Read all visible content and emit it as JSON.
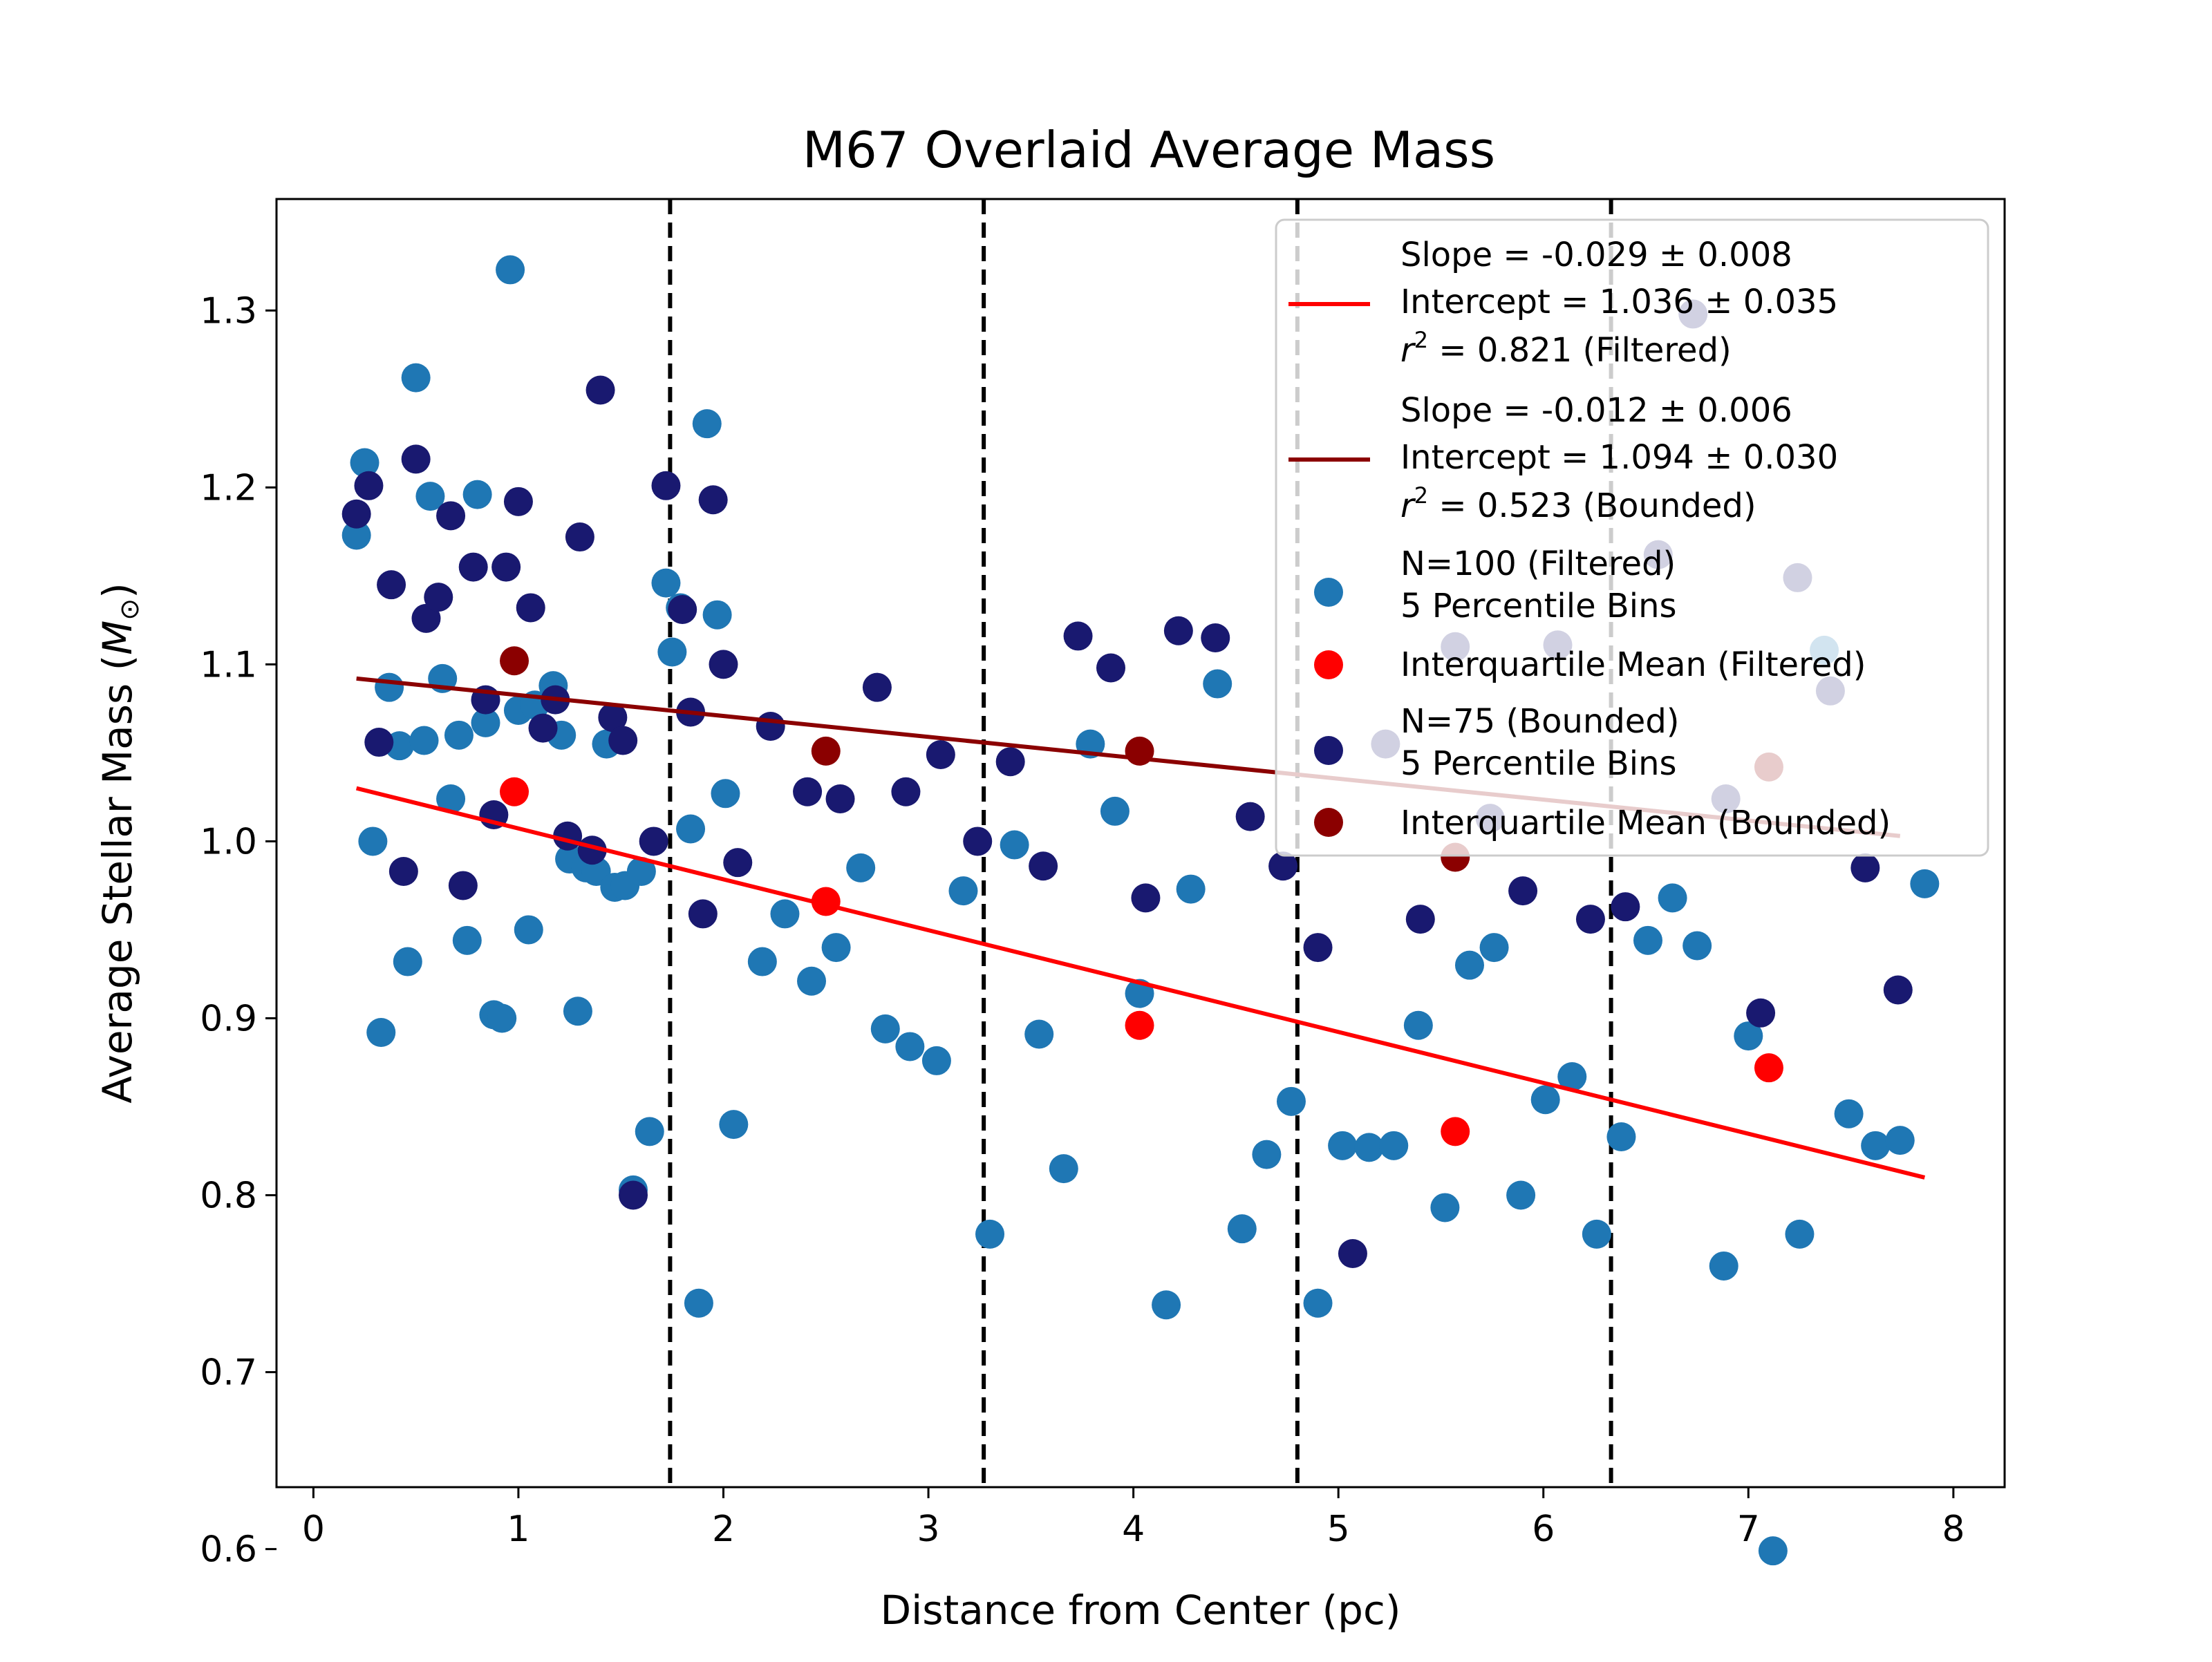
{
  "chart_data": {
    "type": "scatter",
    "title": "M67 Overlaid Average Mass",
    "xlabel": "Distance from Center (pc)",
    "ylabel": "Average Stellar Mass (M☉)",
    "ylabel_parts": {
      "main": "Average Stellar Mass (",
      "sym": "M",
      "sub": "⊙",
      "close": ")"
    },
    "xlim": [
      -0.18,
      8.25
    ],
    "ylim": [
      0.635,
      1.363
    ],
    "xticks": [
      0,
      1,
      2,
      3,
      4,
      5,
      6,
      7,
      8
    ],
    "xtick_labels": [
      "0",
      "1",
      "2",
      "3",
      "4",
      "5",
      "6",
      "7",
      "8"
    ],
    "yticks": [
      0.6,
      0.7,
      0.8,
      0.9,
      1.0,
      1.1,
      1.2,
      1.3
    ],
    "ytick_labels": [
      "0.6",
      "0.7",
      "0.8",
      "0.9",
      "1.0",
      "1.1",
      "1.2",
      "1.3"
    ],
    "grid": false,
    "legend_position": "top-right",
    "bin_edges": [
      1.74,
      3.27,
      4.8,
      6.33
    ],
    "series": [
      {
        "name": "N=100 (Filtered) 5 Percentile Bins",
        "color": "#1f77b4",
        "points": [
          [
            0.21,
            1.173
          ],
          [
            0.25,
            1.214
          ],
          [
            0.29,
            1.0
          ],
          [
            0.33,
            0.892
          ],
          [
            0.37,
            1.087
          ],
          [
            0.42,
            1.054
          ],
          [
            0.46,
            0.932
          ],
          [
            0.5,
            1.262
          ],
          [
            0.54,
            1.057
          ],
          [
            0.57,
            1.195
          ],
          [
            0.63,
            1.092
          ],
          [
            0.67,
            1.024
          ],
          [
            0.71,
            1.06
          ],
          [
            0.75,
            0.944
          ],
          [
            0.8,
            1.196
          ],
          [
            0.84,
            1.067
          ],
          [
            0.88,
            0.902
          ],
          [
            0.92,
            0.9
          ],
          [
            0.96,
            1.323
          ],
          [
            1.0,
            1.074
          ],
          [
            1.05,
            0.95
          ],
          [
            1.08,
            1.077
          ],
          [
            1.17,
            1.088
          ],
          [
            1.21,
            1.06
          ],
          [
            1.25,
            0.99
          ],
          [
            1.29,
            0.904
          ],
          [
            1.33,
            0.985
          ],
          [
            1.38,
            0.983
          ],
          [
            1.43,
            1.055
          ],
          [
            1.47,
            0.974
          ],
          [
            1.52,
            0.975
          ],
          [
            1.56,
            0.803
          ],
          [
            1.6,
            0.983
          ],
          [
            1.64,
            0.836
          ],
          [
            1.72,
            1.146
          ],
          [
            1.75,
            1.107
          ],
          [
            1.79,
            1.132
          ],
          [
            1.84,
            1.007
          ],
          [
            1.88,
            0.739
          ],
          [
            1.92,
            1.236
          ],
          [
            1.97,
            1.128
          ],
          [
            2.01,
            1.027
          ],
          [
            2.05,
            0.84
          ],
          [
            2.3,
            0.959
          ],
          [
            2.19,
            0.932
          ],
          [
            2.43,
            0.921
          ],
          [
            2.55,
            0.94
          ],
          [
            2.67,
            0.985
          ],
          [
            2.79,
            0.894
          ],
          [
            2.91,
            0.884
          ],
          [
            3.04,
            0.876
          ],
          [
            3.17,
            0.972
          ],
          [
            3.3,
            0.778
          ],
          [
            3.42,
            0.998
          ],
          [
            3.54,
            0.891
          ],
          [
            3.66,
            0.815
          ],
          [
            3.79,
            1.055
          ],
          [
            3.91,
            1.017
          ],
          [
            4.03,
            0.914
          ],
          [
            4.16,
            0.738
          ],
          [
            4.28,
            0.973
          ],
          [
            4.41,
            1.089
          ],
          [
            4.53,
            0.781
          ],
          [
            4.65,
            0.823
          ],
          [
            4.77,
            0.853
          ],
          [
            4.9,
            0.739
          ],
          [
            5.02,
            0.828
          ],
          [
            5.15,
            0.827
          ],
          [
            5.27,
            0.828
          ],
          [
            5.39,
            0.896
          ],
          [
            5.52,
            0.793
          ],
          [
            5.64,
            0.93
          ],
          [
            5.76,
            0.94
          ],
          [
            5.89,
            0.8
          ],
          [
            6.01,
            0.854
          ],
          [
            6.14,
            0.867
          ],
          [
            6.26,
            0.778
          ],
          [
            6.38,
            0.833
          ],
          [
            6.51,
            0.944
          ],
          [
            6.63,
            0.968
          ],
          [
            6.75,
            0.941
          ],
          [
            6.88,
            0.76
          ],
          [
            7.0,
            0.89
          ],
          [
            7.12,
            0.599
          ],
          [
            7.25,
            0.778
          ],
          [
            7.37,
            1.108
          ],
          [
            7.49,
            0.846
          ],
          [
            7.62,
            0.828
          ],
          [
            7.74,
            0.831
          ],
          [
            7.86,
            0.976
          ]
        ]
      },
      {
        "name": "Interquartile Mean (Filtered)",
        "color": "#ff0000",
        "points": [
          [
            0.98,
            1.028
          ],
          [
            2.5,
            0.966
          ],
          [
            4.03,
            0.896
          ],
          [
            5.57,
            0.836
          ],
          [
            7.1,
            0.872
          ]
        ]
      },
      {
        "name": "N=75 (Bounded) 5 Percentile Bins",
        "color": "#191970",
        "points": [
          [
            0.21,
            1.185
          ],
          [
            0.27,
            1.201
          ],
          [
            0.32,
            1.056
          ],
          [
            0.38,
            1.145
          ],
          [
            0.44,
            0.983
          ],
          [
            0.5,
            1.216
          ],
          [
            0.55,
            1.126
          ],
          [
            0.61,
            1.138
          ],
          [
            0.67,
            1.184
          ],
          [
            0.73,
            0.975
          ],
          [
            0.78,
            1.155
          ],
          [
            0.84,
            1.08
          ],
          [
            0.88,
            1.015
          ],
          [
            0.94,
            1.155
          ],
          [
            1.0,
            1.192
          ],
          [
            1.06,
            1.132
          ],
          [
            1.12,
            1.064
          ],
          [
            1.18,
            1.08
          ],
          [
            1.24,
            1.003
          ],
          [
            1.3,
            1.172
          ],
          [
            1.36,
            0.995
          ],
          [
            1.4,
            1.255
          ],
          [
            1.46,
            1.07
          ],
          [
            1.51,
            1.057
          ],
          [
            1.56,
            0.8
          ],
          [
            1.66,
            1.0
          ],
          [
            1.72,
            1.201
          ],
          [
            1.8,
            1.131
          ],
          [
            1.84,
            1.073
          ],
          [
            1.9,
            0.959
          ],
          [
            1.95,
            1.193
          ],
          [
            2.0,
            1.1
          ],
          [
            2.07,
            0.988
          ],
          [
            2.23,
            1.065
          ],
          [
            2.41,
            1.028
          ],
          [
            2.57,
            1.024
          ],
          [
            2.75,
            1.087
          ],
          [
            2.89,
            1.028
          ],
          [
            3.06,
            1.049
          ],
          [
            3.24,
            1.0
          ],
          [
            3.4,
            1.045
          ],
          [
            3.56,
            0.986
          ],
          [
            3.73,
            1.116
          ],
          [
            3.89,
            1.098
          ],
          [
            4.06,
            0.968
          ],
          [
            4.22,
            1.119
          ],
          [
            4.4,
            1.115
          ],
          [
            4.57,
            1.014
          ],
          [
            4.73,
            0.986
          ],
          [
            4.9,
            0.94
          ],
          [
            5.07,
            0.767
          ],
          [
            5.23,
            1.055
          ],
          [
            5.4,
            0.956
          ],
          [
            5.57,
            1.11
          ],
          [
            5.74,
            1.013
          ],
          [
            5.9,
            0.972
          ],
          [
            6.07,
            1.111
          ],
          [
            6.23,
            0.956
          ],
          [
            6.4,
            0.963
          ],
          [
            6.56,
            1.162
          ],
          [
            6.73,
            1.298
          ],
          [
            6.89,
            1.024
          ],
          [
            7.06,
            0.903
          ],
          [
            7.24,
            1.149
          ],
          [
            7.4,
            1.085
          ],
          [
            7.57,
            0.985
          ],
          [
            7.73,
            0.916
          ]
        ]
      },
      {
        "name": "Interquartile Mean (Bounded)",
        "color": "#8b0000",
        "points": [
          [
            0.98,
            1.102
          ],
          [
            2.5,
            1.051
          ],
          [
            4.03,
            1.051
          ],
          [
            5.57,
            0.991
          ],
          [
            7.1,
            1.042
          ]
        ]
      }
    ],
    "fits": [
      {
        "name": "Filtered fit",
        "color": "#ff0000",
        "x": [
          0.21,
          7.86
        ],
        "y": [
          1.03,
          0.81
        ],
        "legend": [
          "Slope = -0.029 ± 0.008",
          "Intercept = 1.036 ± 0.035",
          "r",
          "2",
          " = 0.821 (Filtered)"
        ]
      },
      {
        "name": "Bounded fit",
        "color": "#8b0000",
        "x": [
          0.21,
          7.74
        ],
        "y": [
          1.092,
          1.003
        ],
        "legend": [
          "Slope = -0.012 ± 0.006",
          "Intercept = 1.094 ± 0.030",
          "r",
          "2",
          " = 0.523 (Bounded)"
        ]
      }
    ],
    "legend": {
      "filtered_pts": [
        "N=100 (Filtered)",
        "5 Percentile Bins"
      ],
      "filtered_iqm": "Interquartile Mean (Filtered)",
      "bounded_pts": [
        "N=75 (Bounded)",
        "5 Percentile Bins"
      ],
      "bounded_iqm": "Interquartile Mean (Bounded)"
    }
  }
}
